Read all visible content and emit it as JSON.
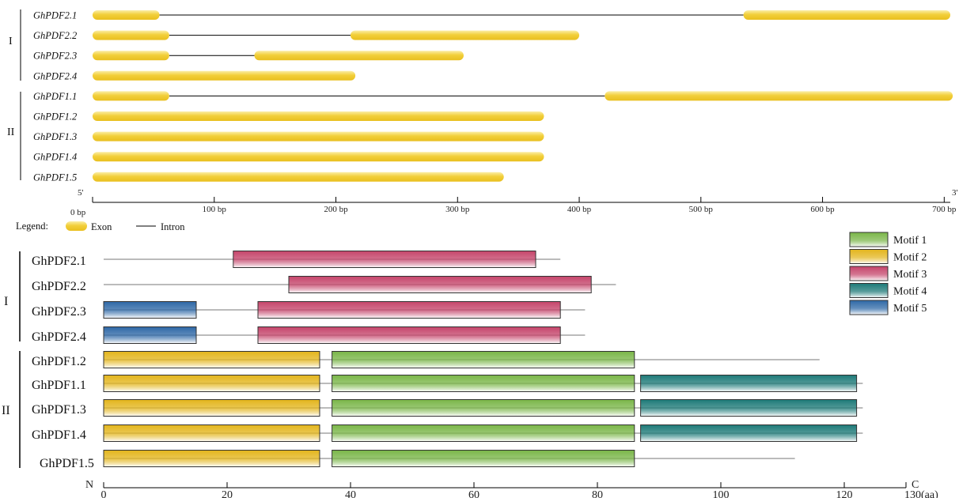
{
  "gene_structure": {
    "groups": [
      {
        "label": "I"
      },
      {
        "label": "II"
      }
    ],
    "genes": [
      {
        "name": "GhPDF2.1",
        "exons": [
          [
            0,
            55
          ],
          [
            535,
            705
          ]
        ]
      },
      {
        "name": "GhPDF2.2",
        "exons": [
          [
            0,
            63
          ],
          [
            212,
            400
          ]
        ]
      },
      {
        "name": "GhPDF2.3",
        "exons": [
          [
            0,
            63
          ],
          [
            133,
            305
          ]
        ]
      },
      {
        "name": "GhPDF2.4",
        "exons": [
          [
            0,
            216
          ]
        ]
      },
      {
        "name": "GhPDF1.1",
        "exons": [
          [
            0,
            63
          ],
          [
            421,
            707
          ]
        ]
      },
      {
        "name": "GhPDF1.2",
        "exons": [
          [
            0,
            371
          ]
        ]
      },
      {
        "name": "GhPDF1.3",
        "exons": [
          [
            0,
            371
          ]
        ]
      },
      {
        "name": "GhPDF1.4",
        "exons": [
          [
            0,
            371
          ]
        ]
      },
      {
        "name": "GhPDF1.5",
        "exons": [
          [
            0,
            338
          ]
        ]
      }
    ],
    "axis": {
      "start_label": "5'",
      "end_label": "3'",
      "range": [
        0,
        705
      ],
      "ticks": [
        {
          "value": 0,
          "label": "0 bp"
        },
        {
          "value": 100,
          "label": "100 bp"
        },
        {
          "value": 200,
          "label": "200 bp"
        },
        {
          "value": 300,
          "label": "300 bp"
        },
        {
          "value": 400,
          "label": "400 bp"
        },
        {
          "value": 500,
          "label": "500 bp"
        },
        {
          "value": 600,
          "label": "600 bp"
        },
        {
          "value": 700,
          "label": "700 bp"
        }
      ]
    },
    "legend": {
      "title": "Legend:",
      "exon_label": "Exon",
      "intron_label": "Intron"
    },
    "colors": {
      "exon": "#f2cf3a",
      "exon_light": "#fbeea6",
      "intron": "#000000"
    }
  },
  "motif_structure": {
    "groups": [
      {
        "label": "I"
      },
      {
        "label": "II"
      }
    ],
    "motif_legend": [
      {
        "label": "Motif 1",
        "color": "#7ab648"
      },
      {
        "label": "Motif 2",
        "color": "#e3b51c"
      },
      {
        "label": "Motif 3",
        "color": "#c5456b"
      },
      {
        "label": "Motif 4",
        "color": "#1d7a78"
      },
      {
        "label": "Motif 5",
        "color": "#2e68a6"
      }
    ],
    "proteins": [
      {
        "name": "GhPDF2.1",
        "length": 74,
        "motifs": [
          {
            "motif": 3,
            "start": 21,
            "end": 70
          }
        ]
      },
      {
        "name": "GhPDF2.2",
        "length": 83,
        "motifs": [
          {
            "motif": 3,
            "start": 30,
            "end": 79
          }
        ]
      },
      {
        "name": "GhPDF2.3",
        "length": 78,
        "motifs": [
          {
            "motif": 5,
            "start": 0,
            "end": 15
          },
          {
            "motif": 3,
            "start": 25,
            "end": 74
          }
        ]
      },
      {
        "name": "GhPDF2.4",
        "length": 78,
        "motifs": [
          {
            "motif": 5,
            "start": 0,
            "end": 15
          },
          {
            "motif": 3,
            "start": 25,
            "end": 74
          }
        ]
      },
      {
        "name": "GhPDF1.2",
        "length": 116,
        "motifs": [
          {
            "motif": 2,
            "start": 0,
            "end": 35
          },
          {
            "motif": 1,
            "start": 37,
            "end": 86
          }
        ]
      },
      {
        "name": "GhPDF1.1",
        "length": 123,
        "motifs": [
          {
            "motif": 2,
            "start": 0,
            "end": 35
          },
          {
            "motif": 1,
            "start": 37,
            "end": 86
          },
          {
            "motif": 4,
            "start": 87,
            "end": 122
          }
        ]
      },
      {
        "name": "GhPDF1.3",
        "length": 123,
        "motifs": [
          {
            "motif": 2,
            "start": 0,
            "end": 35
          },
          {
            "motif": 1,
            "start": 37,
            "end": 86
          },
          {
            "motif": 4,
            "start": 87,
            "end": 122
          }
        ]
      },
      {
        "name": "GhPDF1.4",
        "length": 123,
        "motifs": [
          {
            "motif": 2,
            "start": 0,
            "end": 35
          },
          {
            "motif": 1,
            "start": 37,
            "end": 86
          },
          {
            "motif": 4,
            "start": 87,
            "end": 122
          }
        ]
      },
      {
        "name": "GhPDF1.5",
        "length": 112,
        "motifs": [
          {
            "motif": 2,
            "start": 0,
            "end": 35
          },
          {
            "motif": 1,
            "start": 37,
            "end": 86
          }
        ]
      }
    ],
    "axis": {
      "start_label": "N",
      "end_label": "C",
      "range": [
        0,
        130
      ],
      "ticks": [
        {
          "value": 0,
          "label": "0"
        },
        {
          "value": 20,
          "label": "20"
        },
        {
          "value": 40,
          "label": "40"
        },
        {
          "value": 60,
          "label": "60"
        },
        {
          "value": 80,
          "label": "80"
        },
        {
          "value": 100,
          "label": "100"
        },
        {
          "value": 120,
          "label": "120"
        },
        {
          "value": 130,
          "label": "130(aa)"
        }
      ]
    }
  }
}
